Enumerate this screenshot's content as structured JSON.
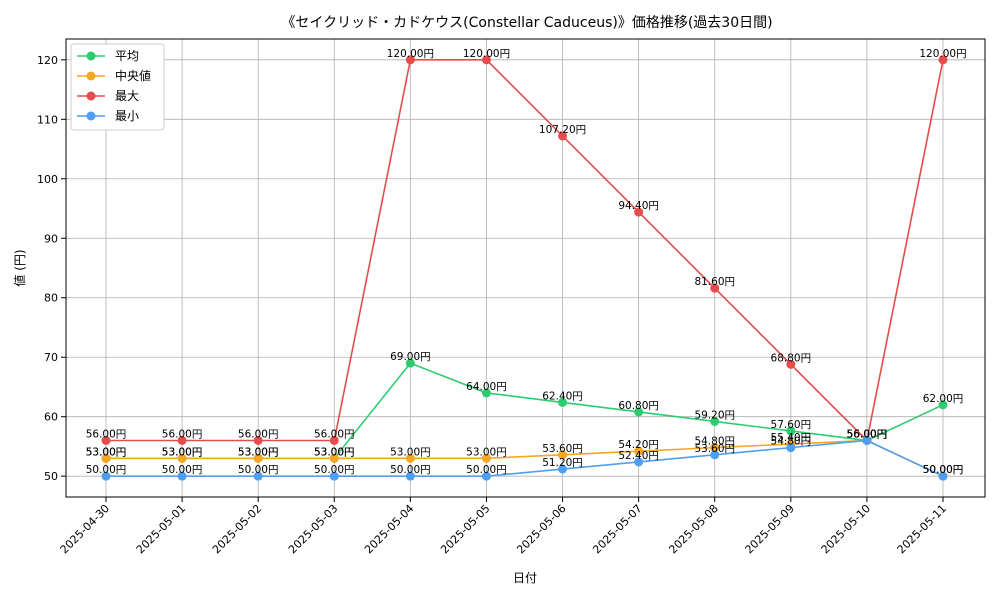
{
  "chart_data": {
    "type": "line",
    "title": "《セイクリッド・カドケウス(Constellar Caduceus)》価格推移(過去30日間)",
    "xlabel": "日付",
    "ylabel": "値 (円)",
    "ylim": [
      46.5,
      123.5
    ],
    "yticks": [
      50,
      60,
      70,
      80,
      90,
      100,
      110,
      120
    ],
    "grid": true,
    "legend_position": "top-left",
    "label_suffix": "円",
    "categories": [
      "2025-04-30",
      "2025-05-01",
      "2025-05-02",
      "2025-05-03",
      "2025-05-04",
      "2025-05-05",
      "2025-05-06",
      "2025-05-07",
      "2025-05-08",
      "2025-05-09",
      "2025-05-10",
      "2025-05-11"
    ],
    "series": [
      {
        "name": "平均",
        "color": "#2ecc71",
        "values": [
          53.0,
          53.0,
          53.0,
          53.0,
          69.0,
          64.0,
          62.4,
          60.8,
          59.2,
          57.6,
          56.0,
          62.0
        ]
      },
      {
        "name": "中央値",
        "color": "#f5a623",
        "values": [
          53.0,
          53.0,
          53.0,
          53.0,
          53.0,
          53.0,
          53.6,
          54.2,
          54.8,
          55.4,
          56.0,
          50.0
        ]
      },
      {
        "name": "最大",
        "color": "#e74c4c",
        "values": [
          56.0,
          56.0,
          56.0,
          56.0,
          120.0,
          120.0,
          107.2,
          94.4,
          81.6,
          68.8,
          56.0,
          120.0
        ]
      },
      {
        "name": "最小",
        "color": "#4f9ef0",
        "values": [
          50.0,
          50.0,
          50.0,
          50.0,
          50.0,
          50.0,
          51.2,
          52.4,
          53.6,
          54.8,
          56.0,
          50.0
        ]
      }
    ]
  }
}
